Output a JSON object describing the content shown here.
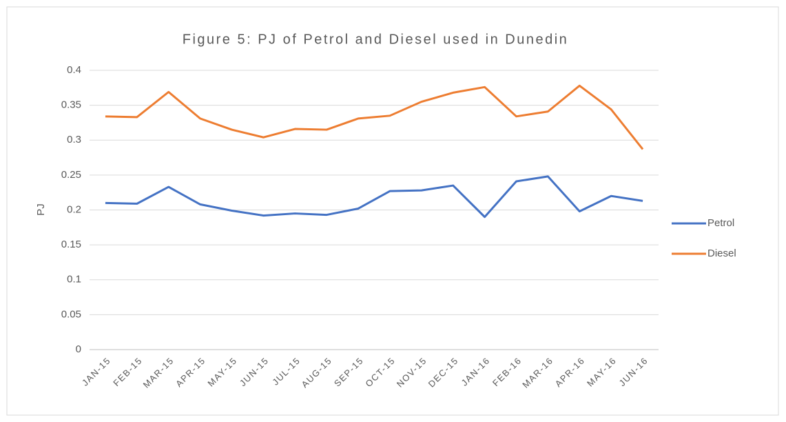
{
  "chart_data": {
    "type": "line",
    "title": "Figure 5: PJ of Petrol and Diesel used in Dunedin",
    "y_label": "PJ",
    "categories": [
      "JAN-15",
      "FEB-15",
      "MAR-15",
      "APR-15",
      "MAY-15",
      "JUN-15",
      "JUL-15",
      "AUG-15",
      "SEP-15",
      "OCT-15",
      "NOV-15",
      "DEC-15",
      "JAN-16",
      "FEB-16",
      "MAR-16",
      "APR-16",
      "MAY-16",
      "JUN-16"
    ],
    "series": [
      {
        "name": "Petrol",
        "color": "#4472c4",
        "values": [
          0.21,
          0.209,
          0.233,
          0.208,
          0.199,
          0.192,
          0.195,
          0.193,
          0.202,
          0.227,
          0.228,
          0.235,
          0.19,
          0.241,
          0.248,
          0.198,
          0.22,
          0.213
        ]
      },
      {
        "name": "Diesel",
        "color": "#ed7d31",
        "values": [
          0.334,
          0.333,
          0.369,
          0.331,
          0.315,
          0.304,
          0.316,
          0.315,
          0.331,
          0.335,
          0.355,
          0.368,
          0.376,
          0.334,
          0.341,
          0.378,
          0.344,
          0.287
        ]
      }
    ],
    "ylim": [
      0,
      0.4
    ],
    "yticks": [
      0,
      0.05,
      0.1,
      0.15,
      0.2,
      0.25,
      0.3,
      0.35,
      0.4
    ],
    "grid": true,
    "legend": "right"
  }
}
